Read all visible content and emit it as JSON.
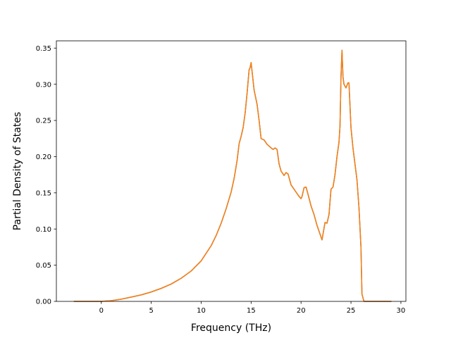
{
  "chart_data": {
    "type": "line",
    "title": "",
    "xlabel": "Frequency (THz)",
    "ylabel": "Partial Density of States",
    "xlim": [
      -4.5,
      30.5
    ],
    "ylim": [
      0.0,
      0.36
    ],
    "xticks": [
      0,
      5,
      10,
      15,
      20,
      25,
      30
    ],
    "xtick_labels": [
      "0",
      "5",
      "10",
      "15",
      "20",
      "25",
      "30"
    ],
    "yticks": [
      0.0,
      0.05,
      0.1,
      0.15,
      0.2,
      0.25,
      0.3,
      0.35
    ],
    "ytick_labels": [
      "0.00",
      "0.05",
      "0.10",
      "0.15",
      "0.20",
      "0.25",
      "0.30",
      "0.35"
    ],
    "grid": false,
    "legend": false,
    "series": [
      {
        "color": "#1f77b4",
        "x": [
          -2.7,
          0.0,
          1.0,
          2.0,
          3.0,
          4.0,
          5.0,
          6.0,
          7.0,
          8.0,
          9.0,
          10.0,
          11.0,
          11.5,
          12.0,
          12.5,
          13.0,
          13.3,
          13.6,
          13.8,
          14.0,
          14.2,
          14.4,
          14.6,
          14.8,
          14.9,
          15.0,
          15.3,
          15.6,
          15.8,
          16.0,
          16.3,
          16.6,
          17.0,
          17.2,
          17.4,
          17.6,
          17.8,
          18.0,
          18.3,
          18.5,
          18.7,
          19.0,
          19.4,
          19.8,
          20.0,
          20.1,
          20.3,
          20.5,
          20.7,
          21.0,
          21.3,
          21.6,
          21.9,
          22.1,
          22.4,
          22.6,
          22.8,
          23.0,
          23.2,
          23.4,
          23.6,
          23.8,
          23.9,
          24.0,
          24.1,
          24.2,
          24.3,
          24.5,
          24.7,
          24.8,
          25.0,
          25.2,
          25.4,
          25.6,
          25.8,
          26.0,
          26.1,
          26.3,
          26.5,
          27.0,
          28.0,
          29.0
        ],
        "y": [
          0.0,
          0.0,
          0.001,
          0.003,
          0.006,
          0.009,
          0.013,
          0.018,
          0.024,
          0.032,
          0.042,
          0.056,
          0.077,
          0.091,
          0.108,
          0.128,
          0.151,
          0.17,
          0.195,
          0.218,
          0.228,
          0.24,
          0.26,
          0.288,
          0.32,
          0.323,
          0.33,
          0.292,
          0.272,
          0.25,
          0.225,
          0.223,
          0.217,
          0.212,
          0.21,
          0.212,
          0.21,
          0.19,
          0.18,
          0.174,
          0.178,
          0.176,
          0.161,
          0.153,
          0.145,
          0.142,
          0.145,
          0.157,
          0.158,
          0.148,
          0.132,
          0.12,
          0.105,
          0.093,
          0.085,
          0.109,
          0.108,
          0.12,
          0.155,
          0.158,
          0.175,
          0.2,
          0.22,
          0.242,
          0.31,
          0.347,
          0.31,
          0.3,
          0.295,
          0.302,
          0.302,
          0.24,
          0.212,
          0.19,
          0.168,
          0.13,
          0.075,
          0.01,
          0.0,
          0.0,
          0.0,
          0.0,
          0.0
        ]
      },
      {
        "color": "#ff7f0e",
        "x": [
          -2.7,
          0.0,
          1.0,
          2.0,
          3.0,
          4.0,
          5.0,
          6.0,
          7.0,
          8.0,
          9.0,
          10.0,
          11.0,
          11.5,
          12.0,
          12.5,
          13.0,
          13.3,
          13.6,
          13.8,
          14.0,
          14.2,
          14.4,
          14.6,
          14.8,
          14.9,
          15.0,
          15.3,
          15.6,
          15.8,
          16.0,
          16.3,
          16.6,
          17.0,
          17.2,
          17.4,
          17.6,
          17.8,
          18.0,
          18.3,
          18.5,
          18.7,
          19.0,
          19.4,
          19.8,
          20.0,
          20.1,
          20.3,
          20.5,
          20.7,
          21.0,
          21.3,
          21.6,
          21.9,
          22.1,
          22.4,
          22.6,
          22.8,
          23.0,
          23.2,
          23.4,
          23.6,
          23.8,
          23.9,
          24.0,
          24.1,
          24.2,
          24.3,
          24.5,
          24.7,
          24.8,
          25.0,
          25.2,
          25.4,
          25.6,
          25.8,
          26.0,
          26.1,
          26.3,
          26.5,
          27.0,
          28.0,
          29.0
        ],
        "y": [
          0.0,
          0.0,
          0.001,
          0.003,
          0.006,
          0.009,
          0.013,
          0.018,
          0.024,
          0.032,
          0.042,
          0.056,
          0.077,
          0.091,
          0.108,
          0.128,
          0.151,
          0.17,
          0.195,
          0.218,
          0.228,
          0.24,
          0.26,
          0.288,
          0.32,
          0.323,
          0.33,
          0.292,
          0.272,
          0.25,
          0.225,
          0.223,
          0.217,
          0.212,
          0.21,
          0.212,
          0.21,
          0.19,
          0.18,
          0.174,
          0.178,
          0.176,
          0.161,
          0.153,
          0.145,
          0.142,
          0.145,
          0.157,
          0.158,
          0.148,
          0.132,
          0.12,
          0.105,
          0.093,
          0.085,
          0.109,
          0.108,
          0.12,
          0.155,
          0.158,
          0.175,
          0.2,
          0.22,
          0.242,
          0.31,
          0.347,
          0.31,
          0.3,
          0.295,
          0.302,
          0.302,
          0.24,
          0.212,
          0.19,
          0.168,
          0.13,
          0.075,
          0.01,
          0.0,
          0.0,
          0.0,
          0.0,
          0.0
        ]
      }
    ]
  }
}
